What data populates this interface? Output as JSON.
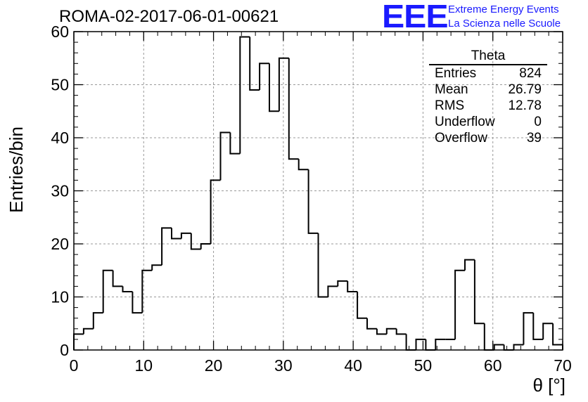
{
  "header": {
    "run_title": "ROMA-02-2017-06-01-00621",
    "logo_text": "EEE",
    "org_line1": "Extreme Energy Events",
    "org_line2": "La Scienza nelle Scuole"
  },
  "stats_box": {
    "title": "Theta",
    "rows": [
      {
        "label": "Entries",
        "value": "824"
      },
      {
        "label": "Mean",
        "value": "26.79"
      },
      {
        "label": "RMS",
        "value": "12.78"
      },
      {
        "label": "Underflow",
        "value": "0"
      },
      {
        "label": "Overflow",
        "value": "39"
      }
    ]
  },
  "colors": {
    "logo": "#1a1aff",
    "line": "#000000",
    "grid": "#999999"
  },
  "chart_data": {
    "type": "bar",
    "style": "step-histogram",
    "xlabel": "θ [°]",
    "ylabel": "Entries/bin",
    "xlim": [
      0,
      70
    ],
    "ylim": [
      0,
      60
    ],
    "grid": true,
    "bin_width": 1.4,
    "x_ticks": [
      0,
      10,
      20,
      30,
      40,
      50,
      60,
      70
    ],
    "y_ticks": [
      0,
      10,
      20,
      30,
      40,
      50,
      60
    ],
    "values": [
      3,
      4,
      7,
      15,
      12,
      11,
      7,
      15,
      16,
      23,
      21,
      22,
      19,
      20,
      32,
      41,
      37,
      59,
      49,
      54,
      45,
      55,
      36,
      34,
      22,
      10,
      12,
      13,
      11,
      6,
      4,
      3,
      4,
      3,
      0,
      2,
      0,
      2,
      2,
      15,
      17,
      5,
      0,
      1,
      0,
      1,
      7,
      2,
      5,
      1
    ]
  }
}
